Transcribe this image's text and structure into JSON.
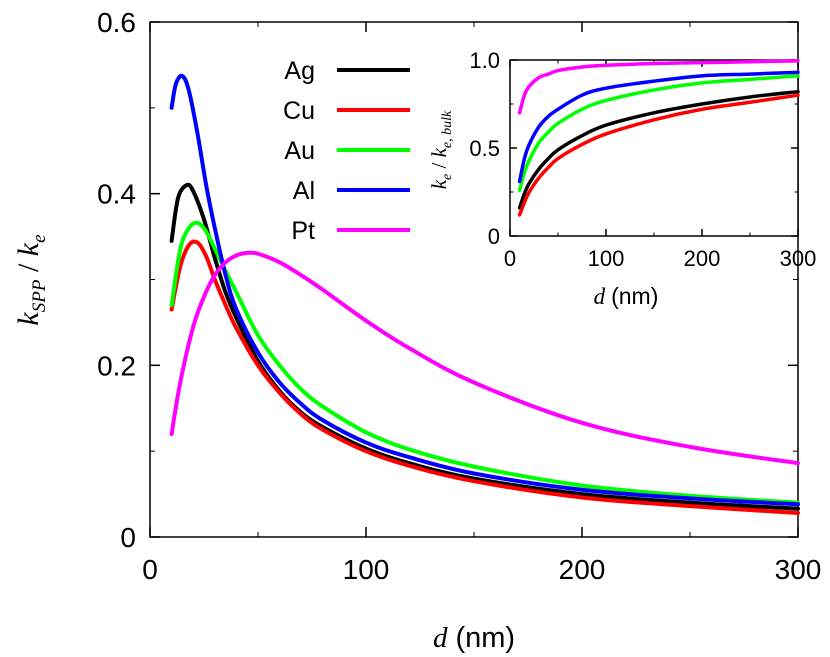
{
  "chart_data": [
    {
      "type": "line",
      "xlabel_var": "d",
      "xlabel_unit": "(nm)",
      "ylabel": "kSPP / ke",
      "ylabel_main": "k",
      "ylabel_sub": "SPP",
      "ylabel_sep": " / ",
      "ylabel_main2": "k",
      "ylabel_sub2": "e",
      "xlim": [
        0,
        300
      ],
      "ylim": [
        0,
        0.6
      ],
      "xticks": [
        "0",
        "100",
        "200",
        "300"
      ],
      "yticks": [
        "0",
        "0.2",
        "0.4",
        "0.6"
      ],
      "legend_position": "top-center",
      "series": [
        {
          "name": "Ag",
          "color": "#000000",
          "x": [
            10,
            13,
            17,
            20,
            25,
            30,
            35,
            40,
            50,
            60,
            70,
            80,
            100,
            120,
            150,
            200,
            250,
            300
          ],
          "y": [
            0.345,
            0.395,
            0.41,
            0.403,
            0.37,
            0.325,
            0.285,
            0.255,
            0.205,
            0.17,
            0.145,
            0.128,
            0.103,
            0.086,
            0.068,
            0.05,
            0.04,
            0.033
          ]
        },
        {
          "name": "Cu",
          "color": "#ff0000",
          "x": [
            10,
            14,
            18,
            22,
            26,
            30,
            35,
            40,
            50,
            60,
            70,
            80,
            100,
            120,
            150,
            200,
            250,
            300
          ],
          "y": [
            0.265,
            0.315,
            0.34,
            0.343,
            0.327,
            0.3,
            0.27,
            0.243,
            0.2,
            0.168,
            0.143,
            0.125,
            0.1,
            0.083,
            0.065,
            0.046,
            0.036,
            0.028
          ]
        },
        {
          "name": "Au",
          "color": "#00ff00",
          "x": [
            10,
            14,
            18,
            22,
            26,
            30,
            35,
            40,
            50,
            60,
            70,
            80,
            100,
            120,
            150,
            200,
            250,
            300
          ],
          "y": [
            0.27,
            0.335,
            0.36,
            0.366,
            0.356,
            0.336,
            0.31,
            0.285,
            0.235,
            0.2,
            0.172,
            0.152,
            0.122,
            0.102,
            0.082,
            0.06,
            0.048,
            0.04
          ]
        },
        {
          "name": "Al",
          "color": "#0000ff",
          "x": [
            10,
            12,
            15,
            18,
            22,
            26,
            30,
            35,
            40,
            50,
            60,
            70,
            80,
            100,
            120,
            150,
            200,
            250,
            300
          ],
          "y": [
            0.5,
            0.528,
            0.537,
            0.52,
            0.47,
            0.41,
            0.36,
            0.305,
            0.265,
            0.215,
            0.18,
            0.155,
            0.136,
            0.11,
            0.093,
            0.074,
            0.055,
            0.045,
            0.038
          ]
        },
        {
          "name": "Pt",
          "color": "#ff00ff",
          "x": [
            10,
            14,
            20,
            25,
            30,
            35,
            40,
            45,
            50,
            60,
            70,
            80,
            100,
            120,
            150,
            200,
            250,
            300
          ],
          "y": [
            0.12,
            0.18,
            0.245,
            0.28,
            0.305,
            0.32,
            0.328,
            0.331,
            0.33,
            0.32,
            0.305,
            0.288,
            0.252,
            0.22,
            0.18,
            0.133,
            0.105,
            0.086
          ]
        }
      ]
    },
    {
      "type": "line",
      "inset": true,
      "xlabel_var": "d",
      "xlabel_unit": "(nm)",
      "ylabel": "ke / ke,bulk",
      "ylabel_main": "k",
      "ylabel_sub": "e",
      "ylabel_sep": " / ",
      "ylabel_main2": "k",
      "ylabel_sub2": "e, bulk",
      "xlim": [
        0,
        300
      ],
      "ylim": [
        0,
        1.0
      ],
      "xticks": [
        "0",
        "100",
        "200",
        "300"
      ],
      "yticks": [
        "0",
        "0.5",
        "1.0"
      ],
      "series": [
        {
          "name": "Ag",
          "color": "#000000",
          "x": [
            10,
            15,
            20,
            30,
            40,
            50,
            75,
            100,
            150,
            200,
            250,
            300
          ],
          "y": [
            0.16,
            0.24,
            0.3,
            0.38,
            0.44,
            0.49,
            0.57,
            0.63,
            0.7,
            0.75,
            0.79,
            0.82
          ]
        },
        {
          "name": "Cu",
          "color": "#ff0000",
          "x": [
            10,
            15,
            20,
            30,
            40,
            50,
            75,
            100,
            150,
            200,
            250,
            300
          ],
          "y": [
            0.12,
            0.19,
            0.25,
            0.33,
            0.39,
            0.44,
            0.52,
            0.58,
            0.66,
            0.72,
            0.76,
            0.8
          ]
        },
        {
          "name": "Au",
          "color": "#00ff00",
          "x": [
            10,
            15,
            20,
            30,
            40,
            50,
            75,
            100,
            150,
            200,
            250,
            300
          ],
          "y": [
            0.26,
            0.36,
            0.43,
            0.53,
            0.59,
            0.64,
            0.72,
            0.77,
            0.83,
            0.87,
            0.89,
            0.91
          ]
        },
        {
          "name": "Al",
          "color": "#0000ff",
          "x": [
            10,
            15,
            20,
            30,
            40,
            50,
            75,
            100,
            150,
            200,
            250,
            300
          ],
          "y": [
            0.31,
            0.44,
            0.52,
            0.62,
            0.68,
            0.72,
            0.8,
            0.84,
            0.88,
            0.91,
            0.92,
            0.93
          ]
        },
        {
          "name": "Pt",
          "color": "#ff00ff",
          "x": [
            10,
            15,
            20,
            30,
            40,
            50,
            75,
            100,
            150,
            200,
            250,
            300
          ],
          "y": [
            0.7,
            0.8,
            0.85,
            0.9,
            0.92,
            0.94,
            0.96,
            0.97,
            0.98,
            0.985,
            0.99,
            0.995
          ]
        }
      ]
    }
  ]
}
